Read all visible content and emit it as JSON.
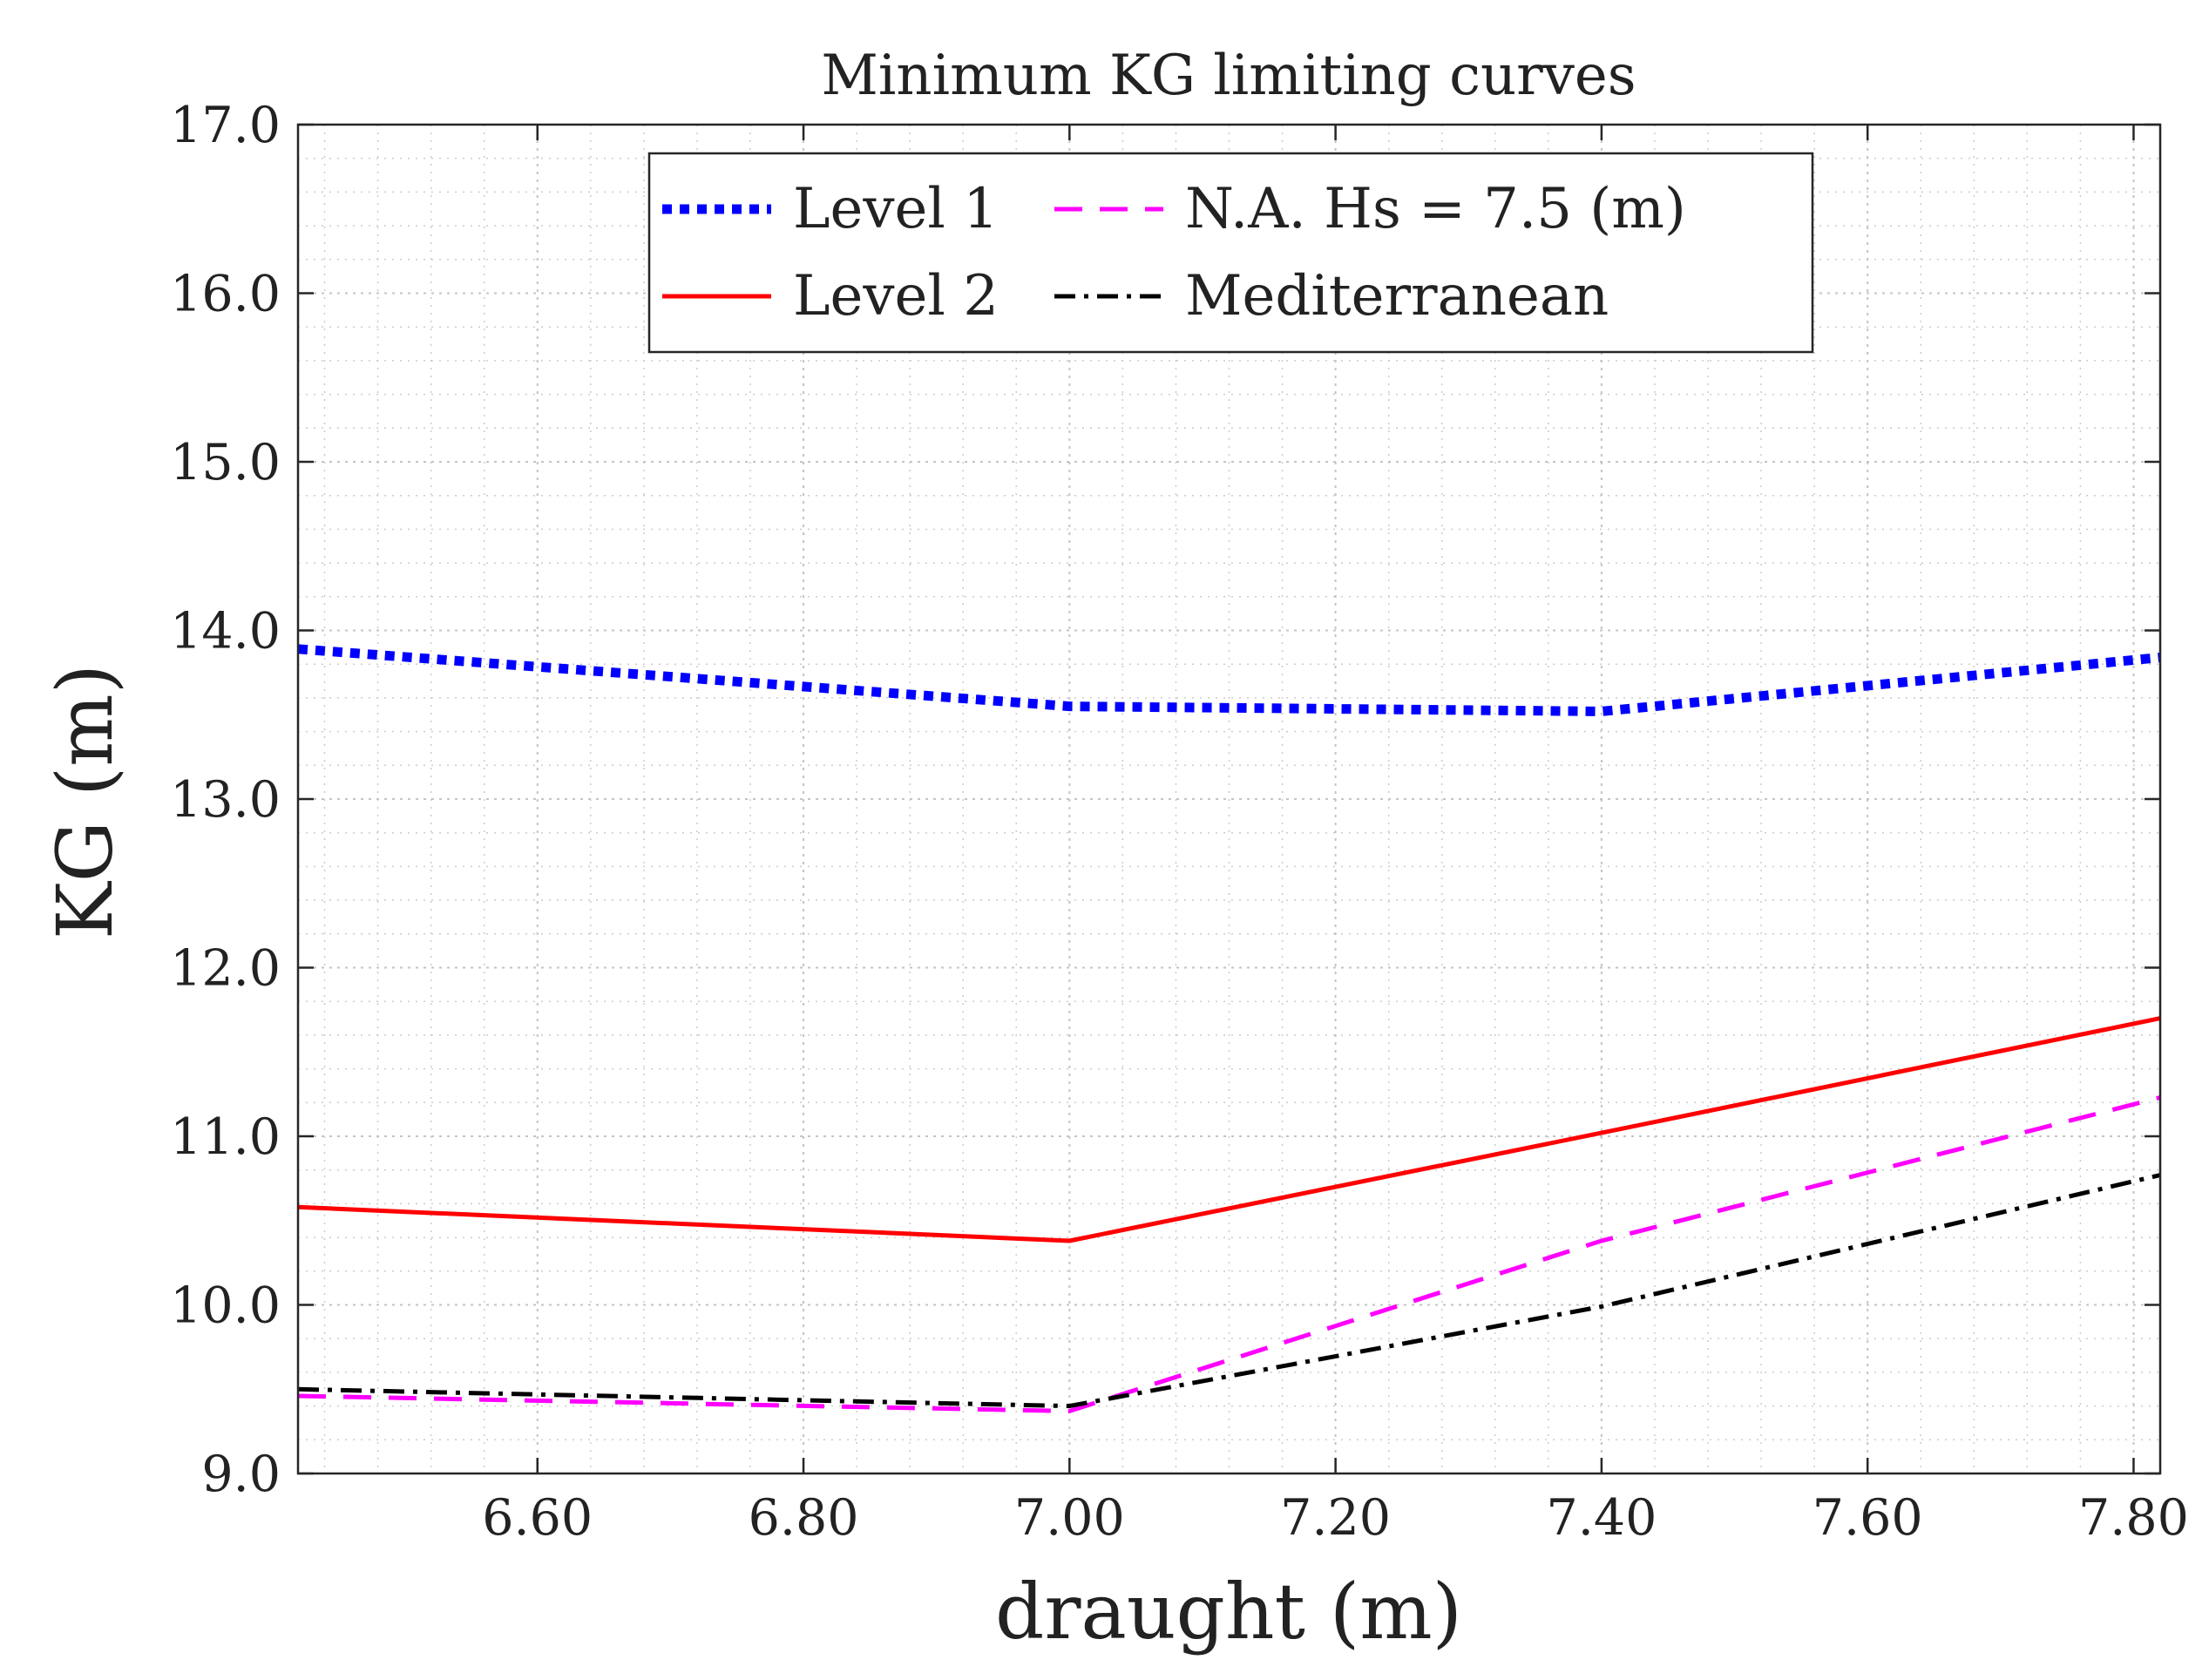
{
  "chart_data": {
    "type": "line",
    "title": "Minimum KG limiting curves",
    "xlabel": "draught (m)",
    "ylabel": "KG (m)",
    "xlim": [
      6.42,
      7.82
    ],
    "ylim": [
      9.0,
      17.0
    ],
    "x_ticks": [
      6.6,
      6.8,
      7.0,
      7.2,
      7.4,
      7.6,
      7.8
    ],
    "x_tick_labels": [
      "6.60",
      "6.80",
      "7.00",
      "7.20",
      "7.40",
      "7.60",
      "7.80"
    ],
    "y_ticks": [
      9,
      10,
      11,
      12,
      13,
      14,
      15,
      16,
      17
    ],
    "y_tick_labels": [
      "9.0",
      "10.0",
      "11.0",
      "12.0",
      "13.0",
      "14.0",
      "15.0",
      "16.0",
      "17.0"
    ],
    "grid": true,
    "minor_grid": true,
    "legend_position": "top-center",
    "series": [
      {
        "name": "Level 1",
        "color": "#0000ff",
        "style": "dotted",
        "x": [
          6.42,
          7.0,
          7.4,
          7.82
        ],
        "y": [
          13.89,
          13.55,
          13.52,
          13.84
        ]
      },
      {
        "name": "N.A. Hs = 7.5 (m)",
        "color": "#ff00ff",
        "style": "dashed",
        "x": [
          6.42,
          7.0,
          7.4,
          7.82
        ],
        "y": [
          9.46,
          9.37,
          10.38,
          11.23
        ]
      },
      {
        "name": "Level 2",
        "color": "#ff0000",
        "style": "solid",
        "x": [
          6.42,
          7.0,
          7.4,
          7.82
        ],
        "y": [
          10.58,
          10.38,
          11.02,
          11.7
        ]
      },
      {
        "name": "Mediterranean",
        "color": "#000000",
        "style": "dashdot",
        "x": [
          6.42,
          7.0,
          7.4,
          7.82
        ],
        "y": [
          9.5,
          9.4,
          9.99,
          10.77
        ]
      }
    ]
  }
}
